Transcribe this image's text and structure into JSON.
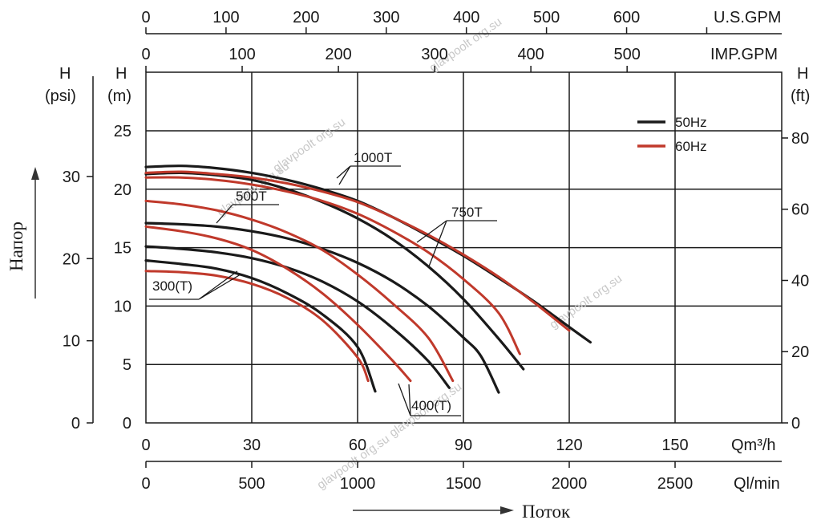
{
  "chart_data": {
    "type": "line",
    "axes": {
      "x_m3h": {
        "label": "Qm³/h",
        "ticks": [
          0,
          30,
          60,
          90,
          120,
          150
        ],
        "range": [
          0,
          180
        ]
      },
      "x_lmin": {
        "label": "Ql/min",
        "ticks": [
          0,
          500,
          1000,
          1500,
          2000,
          2500
        ]
      },
      "x_usgpm": {
        "label": "U.S.GPM",
        "ticks": [
          0,
          100,
          200,
          300,
          400,
          500,
          600
        ]
      },
      "x_impgpm": {
        "label": "IMP.GPM",
        "ticks": [
          0,
          100,
          200,
          300,
          400,
          500
        ]
      },
      "y_m": {
        "label_line1": "H",
        "label_line2": "(m)",
        "ticks": [
          0,
          5,
          10,
          15,
          20,
          25
        ],
        "range": [
          0,
          30
        ]
      },
      "y_psi": {
        "label_line1": "H",
        "label_line2": "(psi)",
        "ticks": [
          0,
          10,
          20,
          30
        ]
      },
      "y_ft": {
        "label_line1": "H",
        "label_line2": "(ft)",
        "ticks": [
          0,
          20,
          40,
          60,
          80
        ]
      }
    },
    "left_caption": "Напор",
    "bottom_caption": "Поток",
    "legend": [
      {
        "label": "50Hz",
        "color": "#1a1a1a"
      },
      {
        "label": "60Hz",
        "color": "#c0392b"
      }
    ],
    "model_labels": {
      "t1000": "1000T",
      "t750": "750T",
      "t500": "500T",
      "t400": "400(T)",
      "t300": "300(T)"
    },
    "grid": true,
    "series": [
      {
        "model": "1000T",
        "freq": "50Hz",
        "points": [
          [
            0,
            21.9
          ],
          [
            10,
            22.0
          ],
          [
            20,
            21.8
          ],
          [
            30,
            21.4
          ],
          [
            40,
            20.8
          ],
          [
            50,
            20.0
          ],
          [
            60,
            19.0
          ],
          [
            70,
            17.6
          ],
          [
            80,
            16.0
          ],
          [
            90,
            14.3
          ],
          [
            100,
            12.4
          ],
          [
            110,
            10.4
          ],
          [
            120,
            8.2
          ],
          [
            126,
            6.9
          ]
        ]
      },
      {
        "model": "1000T",
        "freq": "60Hz",
        "points": [
          [
            0,
            21.4
          ],
          [
            10,
            21.5
          ],
          [
            20,
            21.3
          ],
          [
            30,
            21.0
          ],
          [
            40,
            20.5
          ],
          [
            50,
            19.8
          ],
          [
            60,
            18.9
          ],
          [
            70,
            17.6
          ],
          [
            80,
            16.1
          ],
          [
            90,
            14.4
          ],
          [
            100,
            12.5
          ],
          [
            110,
            10.3
          ],
          [
            120,
            7.9
          ]
        ]
      },
      {
        "model": "750T",
        "freq": "50Hz",
        "points": [
          [
            0,
            21.3
          ],
          [
            10,
            21.4
          ],
          [
            20,
            21.2
          ],
          [
            30,
            20.8
          ],
          [
            40,
            20.0
          ],
          [
            50,
            18.9
          ],
          [
            60,
            17.5
          ],
          [
            70,
            15.7
          ],
          [
            80,
            13.4
          ],
          [
            90,
            10.6
          ],
          [
            100,
            7.2
          ],
          [
            107,
            4.6
          ]
        ]
      },
      {
        "model": "750T",
        "freq": "60Hz",
        "points": [
          [
            0,
            21.0
          ],
          [
            10,
            21.0
          ],
          [
            20,
            20.8
          ],
          [
            30,
            20.4
          ],
          [
            40,
            19.8
          ],
          [
            50,
            19.0
          ],
          [
            60,
            17.9
          ],
          [
            70,
            16.4
          ],
          [
            80,
            14.6
          ],
          [
            90,
            12.3
          ],
          [
            100,
            9.4
          ],
          [
            106,
            5.9
          ]
        ]
      },
      {
        "model": "500T",
        "freq": "50Hz",
        "points": [
          [
            0,
            17.1
          ],
          [
            10,
            17.0
          ],
          [
            20,
            16.8
          ],
          [
            30,
            16.4
          ],
          [
            40,
            15.8
          ],
          [
            50,
            14.9
          ],
          [
            60,
            13.7
          ],
          [
            70,
            12.1
          ],
          [
            80,
            10.0
          ],
          [
            90,
            7.3
          ],
          [
            95,
            5.7
          ],
          [
            100,
            2.6
          ]
        ]
      },
      {
        "model": "500T",
        "freq": "60Hz",
        "points": [
          [
            0,
            19.0
          ],
          [
            10,
            18.7
          ],
          [
            20,
            18.2
          ],
          [
            30,
            17.4
          ],
          [
            40,
            16.3
          ],
          [
            50,
            14.8
          ],
          [
            60,
            12.7
          ],
          [
            70,
            10.2
          ],
          [
            80,
            7.3
          ],
          [
            87,
            3.6
          ]
        ]
      },
      {
        "model": "400(T)",
        "freq": "50Hz",
        "points": [
          [
            0,
            15.1
          ],
          [
            10,
            14.9
          ],
          [
            20,
            14.6
          ],
          [
            30,
            14.1
          ],
          [
            40,
            13.3
          ],
          [
            50,
            12.1
          ],
          [
            60,
            10.4
          ],
          [
            70,
            8.1
          ],
          [
            80,
            5.3
          ],
          [
            86,
            3.0
          ]
        ]
      },
      {
        "model": "400(T)",
        "freq": "60Hz",
        "points": [
          [
            0,
            16.8
          ],
          [
            10,
            16.4
          ],
          [
            20,
            15.8
          ],
          [
            30,
            14.8
          ],
          [
            40,
            13.2
          ],
          [
            50,
            11.1
          ],
          [
            60,
            8.4
          ],
          [
            70,
            5.3
          ],
          [
            75,
            3.6
          ]
        ]
      },
      {
        "model": "300(T)",
        "freq": "50Hz",
        "points": [
          [
            0,
            13.9
          ],
          [
            10,
            13.6
          ],
          [
            20,
            13.2
          ],
          [
            30,
            12.4
          ],
          [
            40,
            11.1
          ],
          [
            50,
            9.3
          ],
          [
            60,
            6.5
          ],
          [
            65,
            2.7
          ]
        ]
      },
      {
        "model": "300(T)",
        "freq": "60Hz",
        "points": [
          [
            0,
            13.0
          ],
          [
            10,
            12.9
          ],
          [
            20,
            12.6
          ],
          [
            30,
            11.9
          ],
          [
            40,
            10.7
          ],
          [
            50,
            8.8
          ],
          [
            60,
            5.6
          ],
          [
            63,
            3.6
          ]
        ]
      }
    ]
  },
  "watermark": "glavpoolt org.su"
}
